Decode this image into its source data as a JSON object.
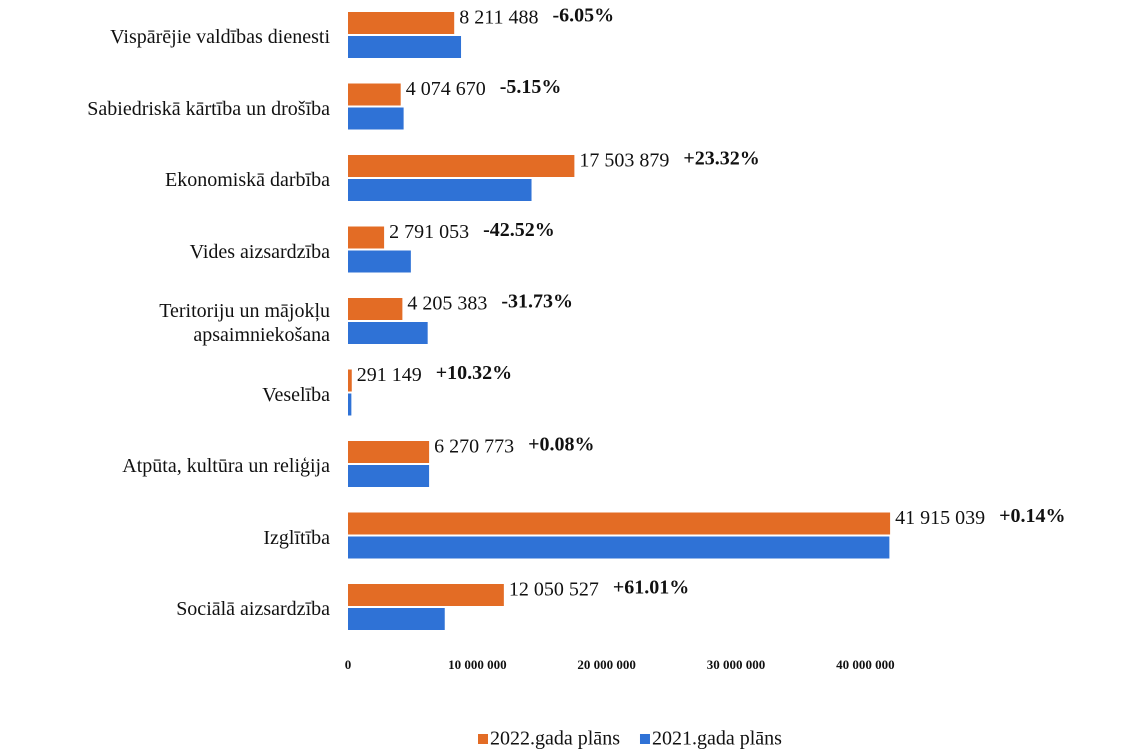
{
  "chart_data": {
    "type": "hbar",
    "categories": [
      "Vispārējie valdības dienesti",
      "Sabiedriskā kārtība un drošība",
      "Ekonomiskā darbība",
      "Vides aizsardzība",
      "Teritoriju un mājokļu\napsaimniekošana",
      "Veselība",
      "Atpūta, kultūra un reliģija",
      "Izglītība",
      "Sociālā aizsardzība"
    ],
    "series": [
      {
        "name": "2022.gada plāns",
        "color": "#e36c25",
        "values": [
          8211488,
          4074670,
          17503879,
          2791053,
          4205383,
          291149,
          6270773,
          41915039,
          12050527
        ],
        "value_labels": [
          "8 211 488",
          "4 074 670",
          "17 503 879",
          "2 791 053",
          "4 205 383",
          "291 149",
          "6 270 773",
          "41 915 039",
          "12 050 527"
        ]
      },
      {
        "name": "2021.gada plāns",
        "color": "#2f72d6",
        "values": [
          8740000,
          4300000,
          14190000,
          4860000,
          6160000,
          260000,
          6270000,
          41860000,
          7480000
        ]
      }
    ],
    "annotations": [
      "-6.05%",
      "-5.15%",
      "+23.32%",
      "-42.52%",
      "-31.73%",
      "+10.32%",
      "+0.08%",
      "+0.14%",
      "+61.01%"
    ],
    "xlim": [
      0,
      45000000
    ],
    "xticks": [
      0,
      {
        "value": 10000000,
        "label": "10 000 000"
      },
      {
        "value": 20000000,
        "label": "20 000 000"
      },
      {
        "value": 30000000,
        "label": "30 000 000"
      },
      {
        "value": 40000000,
        "label": "40 000 000"
      }
    ],
    "legend": "bottom"
  }
}
